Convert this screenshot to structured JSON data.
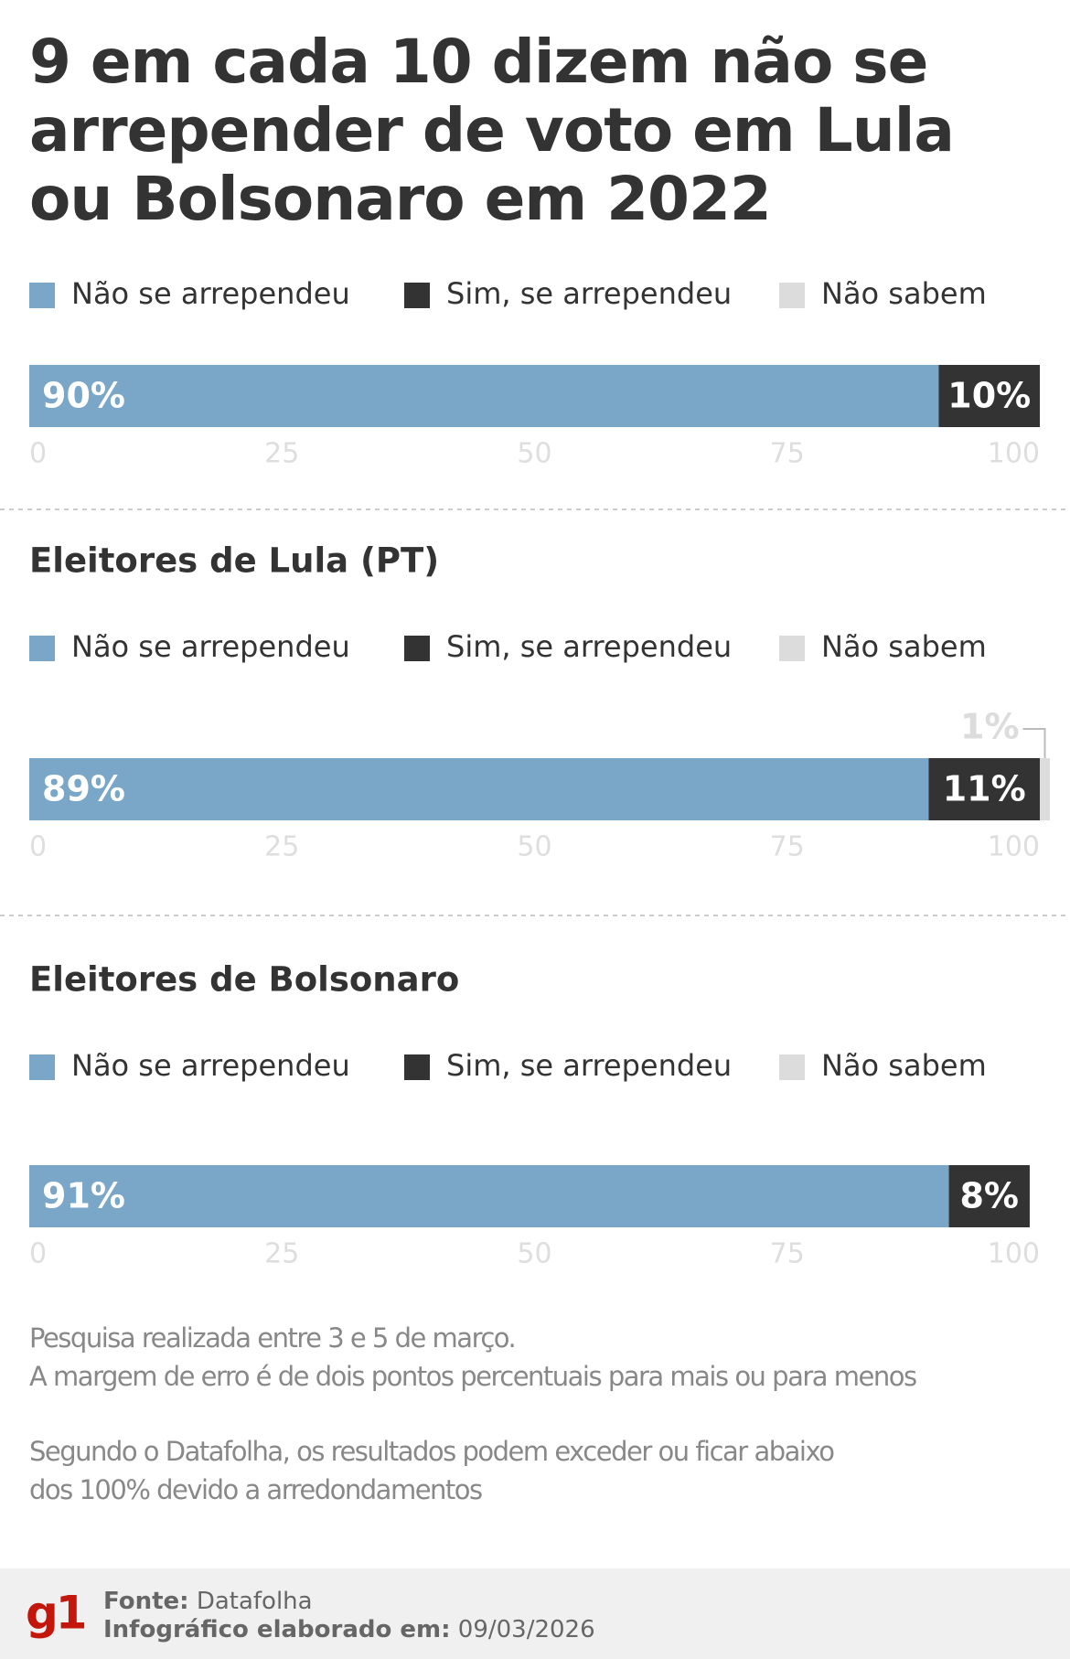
{
  "title": [
    "9 em cada 10 dizem não se",
    "arrepender de voto em Lula",
    "ou Bolsonaro em 2022"
  ],
  "notes": [
    "Pesquisa realizada entre 3 e 5 de março.",
    "A margem de erro é de dois pontos percentuais para mais ou para menos",
    "Segundo o Datafolha, os resultados podem exceder ou ficar abaixo",
    "dos 100% devido a arredondamentos"
  ],
  "footer": {
    "logo": "g1",
    "source_label": "Fonte:",
    "source": "Datafolha",
    "date_label": "Infográfico elaborado em:",
    "date": "09/03/2026"
  },
  "chart_data": [
    {
      "type": "bar",
      "stacked": true,
      "orientation": "horizontal",
      "series": [
        {
          "name": "Não se arrependeu",
          "color": "#7aa6c7",
          "values": [
            90
          ],
          "value_labels": [
            "90%"
          ]
        },
        {
          "name": "Sim, se arrependeu",
          "color": "#333333",
          "values": [
            10
          ],
          "value_labels": [
            "10%"
          ]
        },
        {
          "name": "Não sabem",
          "color": "#dcdcdc",
          "values": [
            0
          ]
        }
      ],
      "xlim": [
        0,
        100
      ],
      "xticks": [
        0,
        25,
        50,
        75,
        100
      ]
    },
    {
      "type": "bar",
      "stacked": true,
      "orientation": "horizontal",
      "title": "Eleitores de Lula (PT)",
      "series": [
        {
          "name": "Não se arrependeu",
          "color": "#7aa6c7",
          "values": [
            89
          ],
          "value_labels": [
            "89%"
          ]
        },
        {
          "name": "Sim, se arrependeu",
          "color": "#333333",
          "values": [
            11
          ],
          "value_labels": [
            "11%"
          ]
        },
        {
          "name": "Não sabem",
          "color": "#dcdcdc",
          "values": [
            1
          ],
          "value_labels": [
            "1%"
          ]
        }
      ],
      "xlim": [
        0,
        100
      ],
      "xticks": [
        0,
        25,
        50,
        75,
        100
      ]
    },
    {
      "type": "bar",
      "stacked": true,
      "orientation": "horizontal",
      "title": "Eleitores de Bolsonaro",
      "series": [
        {
          "name": "Não se arrependeu",
          "color": "#7aa6c7",
          "values": [
            91
          ],
          "value_labels": [
            "91%"
          ]
        },
        {
          "name": "Sim, se arrependeu",
          "color": "#333333",
          "values": [
            8
          ],
          "value_labels": [
            "8%"
          ]
        },
        {
          "name": "Não sabem",
          "color": "#dcdcdc",
          "values": [
            0
          ]
        }
      ],
      "xlim": [
        0,
        100
      ],
      "xticks": [
        0,
        25,
        50,
        75,
        100
      ]
    }
  ]
}
